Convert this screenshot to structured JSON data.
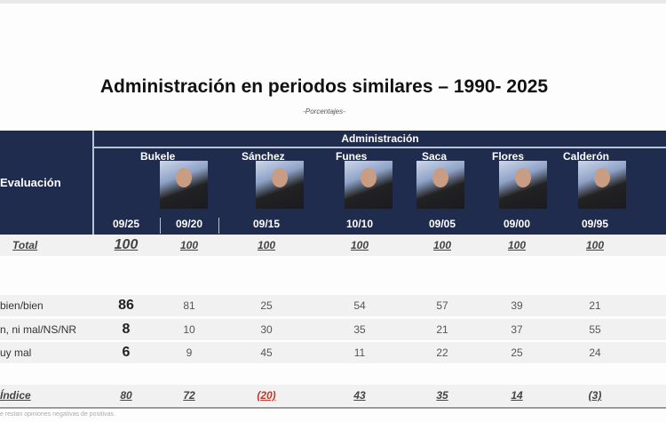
{
  "title": "Administración en periodos similares – 1990- 2025",
  "subtitle": "-Porcentajes-",
  "header": {
    "evaluation": "Evaluación",
    "administration": "Administración"
  },
  "columns": [
    {
      "name": "Bukele",
      "date": "09/25"
    },
    {
      "name": "",
      "date": "09/20"
    },
    {
      "name": "Sánchez",
      "date": "09/15"
    },
    {
      "name": "Funes",
      "date": "10/10"
    },
    {
      "name": "Saca",
      "date": "09/05"
    },
    {
      "name": "Flores",
      "date": "09/00"
    },
    {
      "name": "Calderón",
      "date": "09/95"
    }
  ],
  "rows": [
    {
      "label": "Total",
      "values": [
        "100",
        "100",
        "100",
        "100",
        "100",
        "100",
        "100"
      ]
    },
    {
      "label": "bien/bien",
      "values": [
        "86",
        "81",
        "25",
        "54",
        "57",
        "39",
        "21"
      ]
    },
    {
      "label": "n, ni mal/NS/NR",
      "values": [
        "8",
        "10",
        "30",
        "35",
        "21",
        "37",
        "55"
      ]
    },
    {
      "label": "uy mal",
      "values": [
        "6",
        "9",
        "45",
        "11",
        "22",
        "25",
        "24"
      ]
    },
    {
      "label": "Índice",
      "values": [
        "80",
        "72",
        "(20)",
        "43",
        "35",
        "14",
        "(3)"
      ]
    }
  ],
  "footnote": "e restan opiniones negativas de positivas.",
  "colors": {
    "header": "#1f2c4e",
    "negative": "#c0392b"
  }
}
